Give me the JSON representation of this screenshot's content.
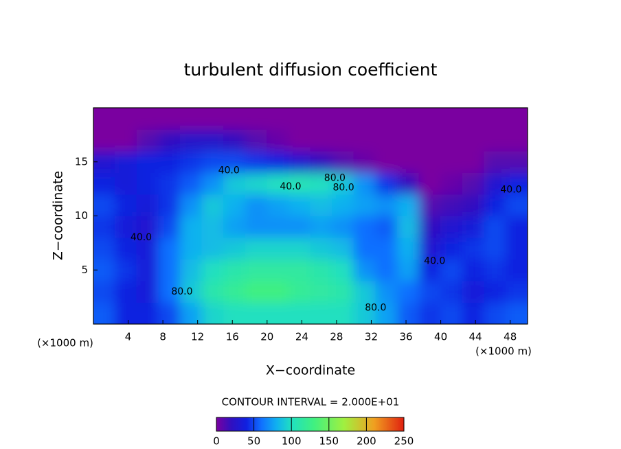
{
  "chart_data": {
    "type": "contour",
    "title": "turbulent diffusion coefficient",
    "xlabel": "X−coordinate",
    "ylabel": "Z−coordinate",
    "x_unit_label": "(×1000 m)",
    "x_unit_label_right": "(×1000 m)",
    "contour_interval_label": "CONTOUR INTERVAL = 2.000E+01",
    "xlim": [
      0,
      50
    ],
    "ylim": [
      0,
      20
    ],
    "xticks": [
      4,
      8,
      12,
      16,
      20,
      24,
      28,
      32,
      36,
      40,
      44,
      48
    ],
    "yticks": [
      5,
      10,
      15
    ],
    "x": [
      1.25,
      3.75,
      6.25,
      8.75,
      11.25,
      13.75,
      16.25,
      18.75,
      21.25,
      23.75,
      26.25,
      28.75,
      31.25,
      33.75,
      36.25,
      38.75,
      41.25,
      43.75,
      46.25,
      48.75
    ],
    "y": [
      1,
      3,
      5,
      7,
      9,
      11,
      13,
      15,
      17,
      19
    ],
    "z": [
      [
        55,
        40,
        40,
        50,
        75,
        95,
        100,
        100,
        100,
        100,
        100,
        100,
        90,
        75,
        55,
        45,
        50,
        40,
        50,
        55
      ],
      [
        50,
        40,
        35,
        60,
        90,
        110,
        120,
        130,
        130,
        120,
        115,
        110,
        90,
        70,
        60,
        50,
        45,
        35,
        40,
        45
      ],
      [
        55,
        45,
        35,
        60,
        85,
        100,
        110,
        115,
        115,
        115,
        110,
        100,
        70,
        60,
        75,
        40,
        50,
        40,
        45,
        40
      ],
      [
        50,
        40,
        35,
        60,
        80,
        85,
        90,
        95,
        95,
        95,
        90,
        85,
        60,
        60,
        80,
        30,
        40,
        45,
        50,
        40
      ],
      [
        45,
        35,
        30,
        50,
        80,
        85,
        75,
        70,
        70,
        70,
        75,
        70,
        60,
        55,
        85,
        20,
        30,
        35,
        50,
        40
      ],
      [
        50,
        40,
        35,
        45,
        70,
        90,
        80,
        70,
        75,
        80,
        85,
        80,
        75,
        70,
        80,
        10,
        15,
        20,
        40,
        50
      ],
      [
        40,
        35,
        40,
        45,
        55,
        70,
        90,
        95,
        100,
        105,
        100,
        90,
        70,
        45,
        20,
        0,
        5,
        10,
        30,
        40
      ],
      [
        30,
        35,
        40,
        40,
        45,
        50,
        50,
        45,
        40,
        30,
        20,
        10,
        5,
        0,
        0,
        0,
        0,
        0,
        10,
        10
      ],
      [
        0,
        0,
        10,
        20,
        25,
        25,
        20,
        10,
        5,
        0,
        0,
        0,
        0,
        0,
        0,
        0,
        0,
        0,
        0,
        0
      ],
      [
        0,
        0,
        0,
        0,
        0,
        0,
        0,
        0,
        0,
        0,
        0,
        0,
        0,
        0,
        0,
        0,
        0,
        0,
        0,
        0
      ]
    ],
    "contour_labels": [
      {
        "text": "40.0",
        "x": 15.6,
        "y": 14.2
      },
      {
        "text": "80.0",
        "x": 27.8,
        "y": 13.5
      },
      {
        "text": "40.0",
        "x": 22.7,
        "y": 12.7
      },
      {
        "text": "80.0",
        "x": 28.8,
        "y": 12.6
      },
      {
        "text": "40.0",
        "x": 5.5,
        "y": 8
      },
      {
        "text": "80.0",
        "x": 10.2,
        "y": 3
      },
      {
        "text": "80.0",
        "x": 32.5,
        "y": 1.5
      },
      {
        "text": "40.0",
        "x": 39.3,
        "y": 5.8
      },
      {
        "text": "40.0",
        "x": 48.1,
        "y": 12.4
      }
    ],
    "colorbar_lim": [
      0,
      250
    ],
    "colorbar_ticks": [
      0,
      50,
      100,
      150,
      200,
      250
    ],
    "colormap": [
      [
        0,
        "#7a00a0"
      ],
      [
        20,
        "#3010c0"
      ],
      [
        40,
        "#1020e0"
      ],
      [
        60,
        "#1070ff"
      ],
      [
        80,
        "#10b0f0"
      ],
      [
        100,
        "#20e0c0"
      ],
      [
        130,
        "#40f080"
      ],
      [
        170,
        "#a0f040"
      ],
      [
        210,
        "#f0a020"
      ],
      [
        250,
        "#e02010"
      ]
    ]
  }
}
